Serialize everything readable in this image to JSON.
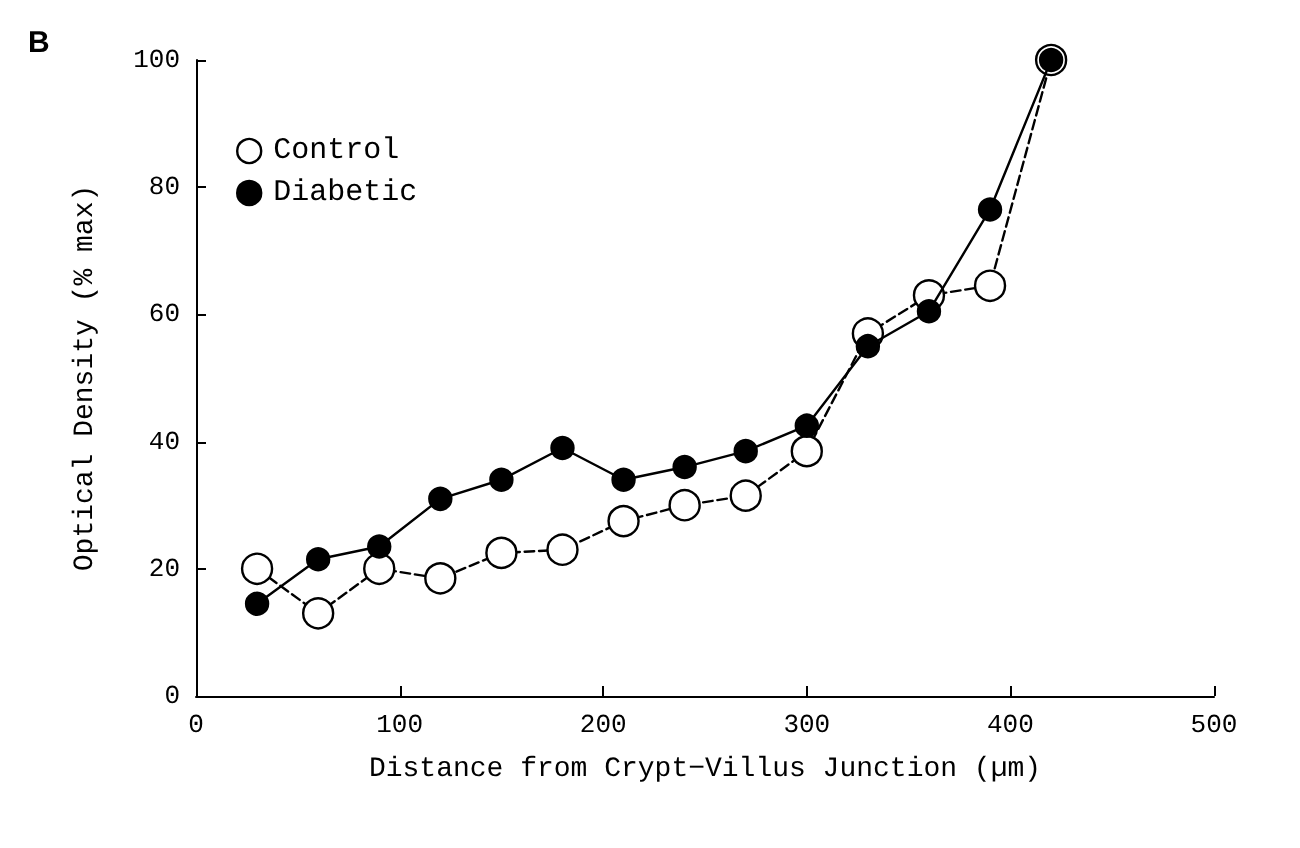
{
  "chart_data": {
    "type": "line",
    "xlabel": "Distance from Crypt−Villus Junction (µm)",
    "ylabel": "Optical Density (% max)",
    "annotations": [
      "B"
    ],
    "x": [
      30,
      60,
      90,
      120,
      150,
      180,
      210,
      240,
      270,
      300,
      330,
      360,
      390,
      420
    ],
    "series": [
      {
        "name": "Control",
        "color": "#000000",
        "line_style": "dashed",
        "values": [
          20,
          13,
          20,
          18.5,
          22.5,
          23,
          27.5,
          30,
          31.5,
          38.5,
          57,
          63,
          64.5,
          100
        ]
      },
      {
        "name": "Diabetic",
        "color": "#000000",
        "line_style": "solid",
        "values": [
          14.5,
          21.5,
          23.5,
          31,
          34,
          39,
          34,
          36,
          38.5,
          42.5,
          55,
          60.5,
          76.5,
          100
        ]
      }
    ],
    "xlim": [
      0,
      500
    ],
    "xticks": [
      0,
      100,
      200,
      300,
      400,
      500
    ],
    "ylim": [
      0,
      100
    ],
    "yticks": [
      0,
      20,
      40,
      60,
      80,
      100
    ],
    "grid": false,
    "legend": "top left",
    "marker": "circle"
  }
}
